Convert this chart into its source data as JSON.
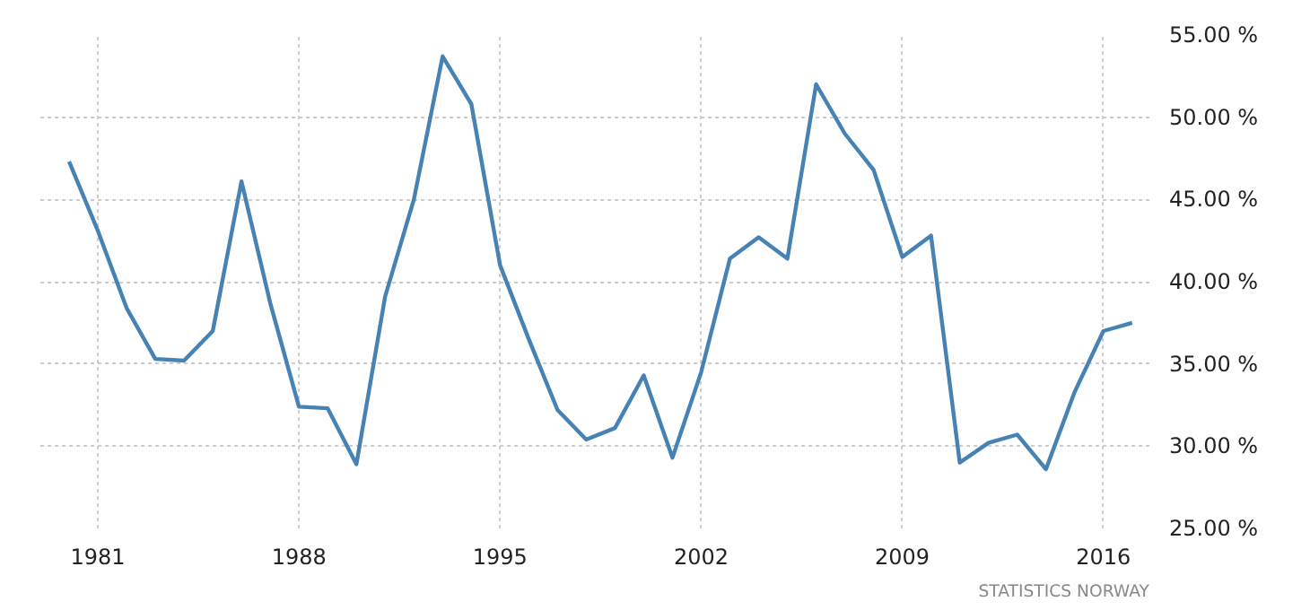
{
  "chart_data": {
    "type": "line",
    "x": [
      1980,
      1981,
      1982,
      1983,
      1984,
      1985,
      1986,
      1987,
      1988,
      1989,
      1990,
      1991,
      1992,
      1993,
      1994,
      1995,
      1996,
      1997,
      1998,
      1999,
      2000,
      2001,
      2002,
      2003,
      2004,
      2005,
      2006,
      2007,
      2008,
      2009,
      2010,
      2011,
      2012,
      2013,
      2014,
      2015,
      2016,
      2017
    ],
    "series": [
      {
        "color": "#4682b4",
        "values": [
          47.3,
          43.1,
          38.4,
          35.3,
          35.2,
          37.0,
          46.1,
          38.7,
          32.4,
          32.3,
          28.9,
          39.1,
          45.0,
          53.7,
          50.8,
          41.0,
          36.5,
          32.2,
          30.4,
          31.1,
          34.3,
          29.3,
          34.5,
          41.4,
          42.7,
          41.4,
          52.0,
          49.0,
          46.8,
          41.5,
          42.8,
          29.0,
          30.2,
          30.7,
          28.6,
          33.3,
          37.0,
          37.5
        ]
      }
    ],
    "xlim": [
      1979,
      2017.6
    ],
    "xticks": [
      1981,
      1988,
      1995,
      2002,
      2009,
      2016
    ],
    "ylim": [
      25,
      55
    ],
    "yticks": [
      {
        "value": 25,
        "label": "25.00 %"
      },
      {
        "value": 30,
        "label": "30.00 %"
      },
      {
        "value": 35,
        "label": "35.00 %"
      },
      {
        "value": 40,
        "label": "40.00 %"
      },
      {
        "value": 45,
        "label": "45.00 %"
      },
      {
        "value": 50,
        "label": "50.00 %"
      },
      {
        "value": 55,
        "label": "55.00 %"
      }
    ],
    "grid": true,
    "line_style": "solid",
    "annotations": [
      "STATISTICS NORWAY"
    ]
  }
}
